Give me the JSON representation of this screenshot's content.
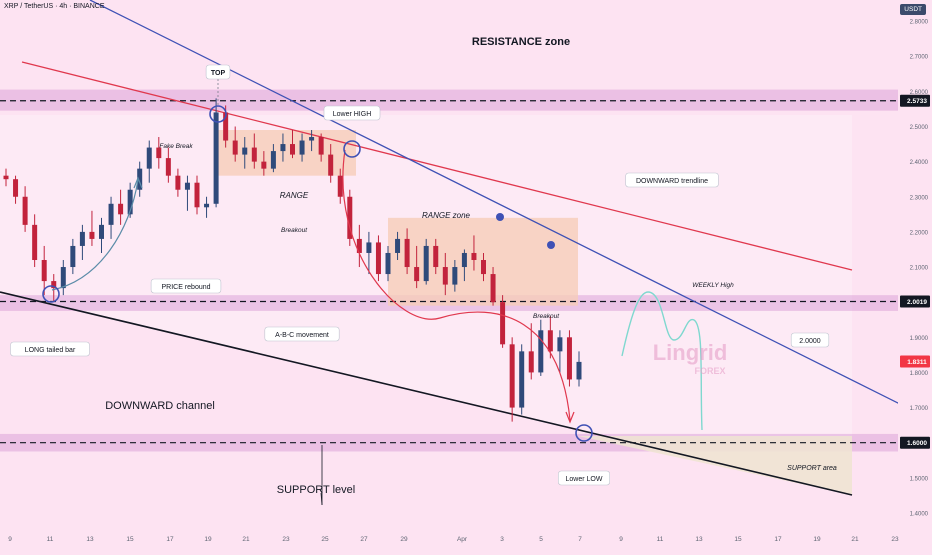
{
  "header": {
    "symbol": "XRP / TetherUS · 4h · BINANCE",
    "currency_badge": "USDT"
  },
  "chart_data": {
    "type": "candlestick",
    "title": "",
    "x_ticks": [
      "9",
      "11",
      "13",
      "15",
      "17",
      "19",
      "21",
      "23",
      "25",
      "27",
      "29",
      "Apr",
      "3",
      "5",
      "7",
      "9",
      "11",
      "13",
      "15",
      "17",
      "19",
      "21",
      "23"
    ],
    "y_ticks": [
      "2.8000",
      "2.7000",
      "2.6000",
      "2.5000",
      "2.4000",
      "2.3000",
      "2.2000",
      "2.1000",
      "2.0000",
      "1.9000",
      "1.8000",
      "1.7000",
      "1.6000",
      "1.5000",
      "1.4000"
    ],
    "ylim": [
      1.38,
      2.86
    ],
    "price_labels": [
      {
        "name": "resistance",
        "value": "2.5733",
        "color": "#131722"
      },
      {
        "name": "range-low",
        "value": "2.0019",
        "color": "#131722"
      },
      {
        "name": "current",
        "value": "1.8311",
        "color": "#f23645"
      },
      {
        "name": "support",
        "value": "1.6000",
        "color": "#131722"
      }
    ],
    "zones": [
      {
        "name": "resistance-zone",
        "from": 2.545,
        "to": 2.605
      },
      {
        "name": "range-zone",
        "from": 1.975,
        "to": 2.02
      },
      {
        "name": "support-zone",
        "from": 1.575,
        "to": 1.625
      }
    ],
    "annotations": {
      "resistance_zone": "RESISTANCE zone",
      "top": "TOP",
      "lower_high": "Lower HIGH",
      "fake_break": "Fake Break",
      "range": "RANGE",
      "breakout_1": "Breakout",
      "range_zone": "RANGE zone",
      "downward_trendline": "DOWNWARD trendline",
      "weekly_high": "WEEKLY High",
      "price_rebound": "PRICE rebound",
      "breakout_2": "Breakout",
      "abc_movement": "A-B-C movement",
      "target_value": "2.0000",
      "long_tailed_bar": "LONG tailed bar",
      "downward_channel": "DOWNWARD channel",
      "lower_low": "Lower LOW",
      "support_area": "SUPPORT area",
      "support_level": "SUPPORT level",
      "watermark_main": "Lingrid",
      "watermark_sub": "FOREX"
    },
    "candles": [
      [
        2.36,
        2.38,
        2.33,
        2.35
      ],
      [
        2.35,
        2.36,
        2.28,
        2.3
      ],
      [
        2.3,
        2.33,
        2.2,
        2.22
      ],
      [
        2.22,
        2.25,
        2.1,
        2.12
      ],
      [
        2.12,
        2.16,
        2.02,
        2.06
      ],
      [
        2.06,
        2.08,
        2.0,
        2.04
      ],
      [
        2.04,
        2.12,
        2.02,
        2.1
      ],
      [
        2.1,
        2.18,
        2.08,
        2.16
      ],
      [
        2.16,
        2.22,
        2.12,
        2.2
      ],
      [
        2.2,
        2.26,
        2.16,
        2.18
      ],
      [
        2.18,
        2.24,
        2.14,
        2.22
      ],
      [
        2.22,
        2.3,
        2.18,
        2.28
      ],
      [
        2.28,
        2.32,
        2.22,
        2.25
      ],
      [
        2.25,
        2.34,
        2.24,
        2.32
      ],
      [
        2.32,
        2.4,
        2.3,
        2.38
      ],
      [
        2.38,
        2.46,
        2.34,
        2.44
      ],
      [
        2.44,
        2.47,
        2.38,
        2.41
      ],
      [
        2.41,
        2.44,
        2.34,
        2.36
      ],
      [
        2.36,
        2.38,
        2.3,
        2.32
      ],
      [
        2.32,
        2.36,
        2.26,
        2.34
      ],
      [
        2.34,
        2.36,
        2.25,
        2.27
      ],
      [
        2.27,
        2.3,
        2.24,
        2.28
      ],
      [
        2.28,
        2.58,
        2.27,
        2.54
      ],
      [
        2.54,
        2.56,
        2.44,
        2.46
      ],
      [
        2.46,
        2.5,
        2.4,
        2.42
      ],
      [
        2.42,
        2.47,
        2.38,
        2.44
      ],
      [
        2.44,
        2.48,
        2.38,
        2.4
      ],
      [
        2.4,
        2.43,
        2.36,
        2.38
      ],
      [
        2.38,
        2.45,
        2.37,
        2.43
      ],
      [
        2.43,
        2.48,
        2.4,
        2.45
      ],
      [
        2.45,
        2.49,
        2.41,
        2.42
      ],
      [
        2.42,
        2.48,
        2.4,
        2.46
      ],
      [
        2.46,
        2.49,
        2.43,
        2.47
      ],
      [
        2.47,
        2.48,
        2.4,
        2.42
      ],
      [
        2.42,
        2.45,
        2.34,
        2.36
      ],
      [
        2.36,
        2.38,
        2.28,
        2.3
      ],
      [
        2.3,
        2.32,
        2.16,
        2.18
      ],
      [
        2.18,
        2.22,
        2.1,
        2.14
      ],
      [
        2.14,
        2.2,
        2.08,
        2.17
      ],
      [
        2.17,
        2.19,
        2.06,
        2.08
      ],
      [
        2.08,
        2.16,
        2.06,
        2.14
      ],
      [
        2.14,
        2.2,
        2.12,
        2.18
      ],
      [
        2.18,
        2.21,
        2.08,
        2.1
      ],
      [
        2.1,
        2.16,
        2.04,
        2.06
      ],
      [
        2.06,
        2.18,
        2.05,
        2.16
      ],
      [
        2.16,
        2.18,
        2.08,
        2.1
      ],
      [
        2.1,
        2.14,
        2.02,
        2.05
      ],
      [
        2.05,
        2.12,
        2.03,
        2.1
      ],
      [
        2.1,
        2.15,
        2.06,
        2.14
      ],
      [
        2.14,
        2.19,
        2.09,
        2.12
      ],
      [
        2.12,
        2.14,
        2.06,
        2.08
      ],
      [
        2.08,
        2.1,
        1.99,
        2.0
      ],
      [
        2.0,
        2.02,
        1.87,
        1.88
      ],
      [
        1.88,
        1.9,
        1.66,
        1.7
      ],
      [
        1.7,
        1.88,
        1.68,
        1.86
      ],
      [
        1.86,
        1.94,
        1.78,
        1.8
      ],
      [
        1.8,
        1.95,
        1.79,
        1.92
      ],
      [
        1.92,
        1.96,
        1.84,
        1.86
      ],
      [
        1.86,
        1.92,
        1.8,
        1.9
      ],
      [
        1.9,
        1.92,
        1.76,
        1.78
      ],
      [
        1.78,
        1.86,
        1.76,
        1.83
      ]
    ]
  }
}
